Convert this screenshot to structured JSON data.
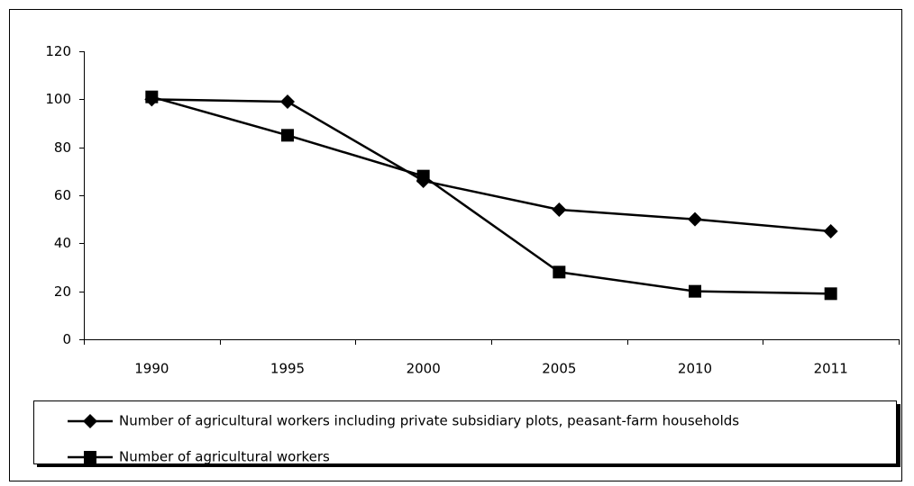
{
  "chart_data": {
    "type": "line",
    "categories": [
      "1990",
      "1995",
      "2000",
      "2005",
      "2010",
      "2011"
    ],
    "series": [
      {
        "name": "Number of agricultural workers including private subsidiary plots, peasant-farm households",
        "color": "#000000",
        "marker": "diamond",
        "values": [
          100,
          99,
          66,
          54,
          50,
          45
        ]
      },
      {
        "name": "Number of agricultural workers",
        "color": "#000000",
        "marker": "square",
        "values": [
          101,
          85,
          68,
          28,
          20,
          19
        ]
      }
    ],
    "ylim": [
      0,
      120
    ],
    "yticks": [
      0,
      20,
      40,
      60,
      80,
      100,
      120
    ],
    "legend": "bottom"
  }
}
